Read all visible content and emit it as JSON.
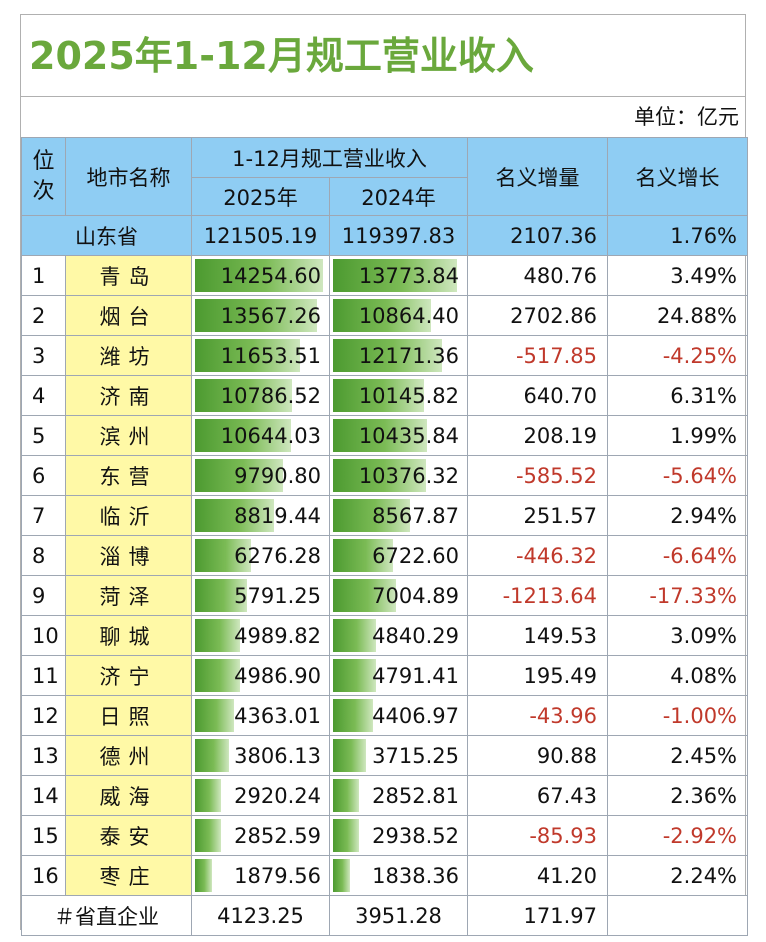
{
  "title": "2025年1-12月规工营业收入",
  "unit": "单位：亿元",
  "headers": {
    "rank": "位次",
    "city": "地市名称",
    "revenue_group": "1-12月规工营业收入",
    "y2025": "2025年",
    "y2024": "2024年",
    "increase": "名义增量",
    "growth": "名义增长"
  },
  "province_row": {
    "name": "山东省",
    "v2025": "121505.19",
    "v2024": "119397.83",
    "increase": "2107.36",
    "growth": "1.76%"
  },
  "rows": [
    {
      "rank": "1",
      "city": "青岛",
      "v2025": "14254.60",
      "v2024": "13773.84",
      "increase": "480.76",
      "growth": "3.49%"
    },
    {
      "rank": "2",
      "city": "烟台",
      "v2025": "13567.26",
      "v2024": "10864.40",
      "increase": "2702.86",
      "growth": "24.88%"
    },
    {
      "rank": "3",
      "city": "潍坊",
      "v2025": "11653.51",
      "v2024": "12171.36",
      "increase": "-517.85",
      "growth": "-4.25%"
    },
    {
      "rank": "4",
      "city": "济南",
      "v2025": "10786.52",
      "v2024": "10145.82",
      "increase": "640.70",
      "growth": "6.31%"
    },
    {
      "rank": "5",
      "city": "滨州",
      "v2025": "10644.03",
      "v2024": "10435.84",
      "increase": "208.19",
      "growth": "1.99%"
    },
    {
      "rank": "6",
      "city": "东营",
      "v2025": "9790.80",
      "v2024": "10376.32",
      "increase": "-585.52",
      "growth": "-5.64%"
    },
    {
      "rank": "7",
      "city": "临沂",
      "v2025": "8819.44",
      "v2024": "8567.87",
      "increase": "251.57",
      "growth": "2.94%"
    },
    {
      "rank": "8",
      "city": "淄博",
      "v2025": "6276.28",
      "v2024": "6722.60",
      "increase": "-446.32",
      "growth": "-6.64%"
    },
    {
      "rank": "9",
      "city": "菏泽",
      "v2025": "5791.25",
      "v2024": "7004.89",
      "increase": "-1213.64",
      "growth": "-17.33%"
    },
    {
      "rank": "10",
      "city": "聊城",
      "v2025": "4989.82",
      "v2024": "4840.29",
      "increase": "149.53",
      "growth": "3.09%"
    },
    {
      "rank": "11",
      "city": "济宁",
      "v2025": "4986.90",
      "v2024": "4791.41",
      "increase": "195.49",
      "growth": "4.08%"
    },
    {
      "rank": "12",
      "city": "日照",
      "v2025": "4363.01",
      "v2024": "4406.97",
      "increase": "-43.96",
      "growth": "-1.00%"
    },
    {
      "rank": "13",
      "city": "德州",
      "v2025": "3806.13",
      "v2024": "3715.25",
      "increase": "90.88",
      "growth": "2.45%"
    },
    {
      "rank": "14",
      "city": "威海",
      "v2025": "2920.24",
      "v2024": "2852.81",
      "increase": "67.43",
      "growth": "2.36%"
    },
    {
      "rank": "15",
      "city": "泰安",
      "v2025": "2852.59",
      "v2024": "2938.52",
      "increase": "-85.93",
      "growth": "-2.92%"
    },
    {
      "rank": "16",
      "city": "枣庄",
      "v2025": "1879.56",
      "v2024": "1838.36",
      "increase": "41.20",
      "growth": "2.24%"
    }
  ],
  "footer_row": {
    "name": "＃省直企业",
    "v2025": "4123.25",
    "v2024": "3951.28",
    "increase": "171.97",
    "growth": ""
  },
  "colors": {
    "title": "#6aa83c",
    "header_bg": "#8fcdf3",
    "city_bg": "#fff9a6",
    "bar": "#5ea53c",
    "negative": "#c0392b"
  },
  "bar_max": 14254.6
}
